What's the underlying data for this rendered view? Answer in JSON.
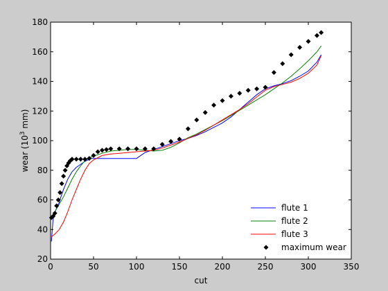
{
  "chart_data": {
    "type": "line",
    "xlabel": "cut",
    "ylabel_prefix": "wear (10",
    "ylabel_sup": "3",
    "ylabel_suffix": " mm)",
    "xlim": [
      0,
      350
    ],
    "ylim": [
      20,
      180
    ],
    "xticks": [
      0,
      50,
      100,
      150,
      200,
      250,
      300,
      350
    ],
    "yticks": [
      20,
      40,
      60,
      80,
      100,
      120,
      140,
      160,
      180
    ],
    "grid": false,
    "legend_position": "bottom-right",
    "background": "#cccccc",
    "plot_background": "#ffffff",
    "series": [
      {
        "name": "flute 1",
        "color": "#0000ff",
        "style": "line",
        "x": [
          1,
          2,
          3,
          4,
          6,
          8,
          10,
          12,
          15,
          20,
          25,
          30,
          40,
          47,
          50,
          60,
          70,
          80,
          90,
          100,
          110,
          120,
          130,
          140,
          150,
          160,
          170,
          180,
          190,
          200,
          210,
          220,
          230,
          240,
          250,
          260,
          270,
          280,
          290,
          300,
          310,
          315
        ],
        "y": [
          32,
          40,
          47,
          49,
          53,
          56,
          58,
          62,
          67,
          74,
          79,
          82,
          86,
          88,
          88,
          88,
          88,
          88,
          88,
          88,
          92,
          94,
          96,
          98,
          100,
          101.5,
          103.5,
          106,
          109,
          112,
          116,
          121,
          126,
          131,
          135,
          137,
          138.5,
          140.5,
          143.5,
          147,
          153,
          158
        ]
      },
      {
        "name": "flute 2",
        "color": "#008000",
        "style": "line",
        "x": [
          1,
          5,
          10,
          15,
          20,
          25,
          30,
          35,
          40,
          45,
          50,
          55,
          60,
          70,
          80,
          90,
          100,
          110,
          120,
          130,
          140,
          150,
          160,
          170,
          180,
          190,
          200,
          210,
          220,
          230,
          240,
          250,
          260,
          270,
          280,
          290,
          300,
          310,
          315
        ],
        "y": [
          47,
          52,
          57,
          62,
          68,
          74,
          79,
          83,
          86.5,
          88.5,
          89.5,
          90.5,
          91.5,
          93,
          93.5,
          94,
          94,
          93.5,
          93,
          93.5,
          95.5,
          98.5,
          102,
          104.5,
          107.5,
          110.5,
          113.5,
          117,
          120.5,
          124,
          127.5,
          131,
          135,
          139,
          143.5,
          148.5,
          154,
          160,
          164
        ]
      },
      {
        "name": "flute 3",
        "color": "#ff0000",
        "style": "line",
        "x": [
          1,
          5,
          10,
          15,
          20,
          25,
          30,
          35,
          40,
          45,
          50,
          55,
          60,
          70,
          80,
          90,
          100,
          110,
          120,
          130,
          140,
          150,
          160,
          170,
          180,
          190,
          200,
          210,
          220,
          230,
          240,
          250,
          260,
          270,
          280,
          290,
          300,
          310,
          315
        ],
        "y": [
          35,
          37,
          40,
          45,
          52,
          60,
          67,
          74,
          80,
          84.5,
          87,
          88.5,
          90,
          91,
          91.5,
          92,
          92.5,
          93,
          93.5,
          95,
          97,
          99,
          101.5,
          104,
          107,
          110.5,
          114,
          117.5,
          121,
          125,
          129.5,
          134,
          136.5,
          138,
          139.5,
          142,
          145.5,
          151,
          157.5
        ]
      },
      {
        "name": "maximum wear",
        "color": "#000000",
        "style": "markers",
        "x": [
          1,
          3,
          5,
          7,
          9,
          11,
          13,
          15,
          17,
          19,
          21,
          23,
          25,
          30,
          35,
          40,
          45,
          50,
          55,
          60,
          65,
          70,
          80,
          90,
          100,
          110,
          120,
          130,
          140,
          150,
          160,
          170,
          180,
          190,
          200,
          210,
          220,
          230,
          240,
          250,
          260,
          270,
          280,
          290,
          300,
          310,
          315
        ],
        "y": [
          48,
          49,
          51,
          56,
          60,
          65,
          71,
          76,
          80,
          83,
          85,
          86.5,
          87.5,
          87.5,
          87.5,
          87.5,
          88,
          90,
          92.5,
          93.5,
          94,
          94.5,
          94.5,
          94.5,
          94.5,
          94.5,
          94.5,
          97.5,
          99.5,
          101,
          108,
          114,
          119,
          124,
          127,
          130,
          132,
          134,
          135,
          136,
          146,
          152,
          158,
          163,
          167,
          171,
          173
        ]
      }
    ]
  }
}
